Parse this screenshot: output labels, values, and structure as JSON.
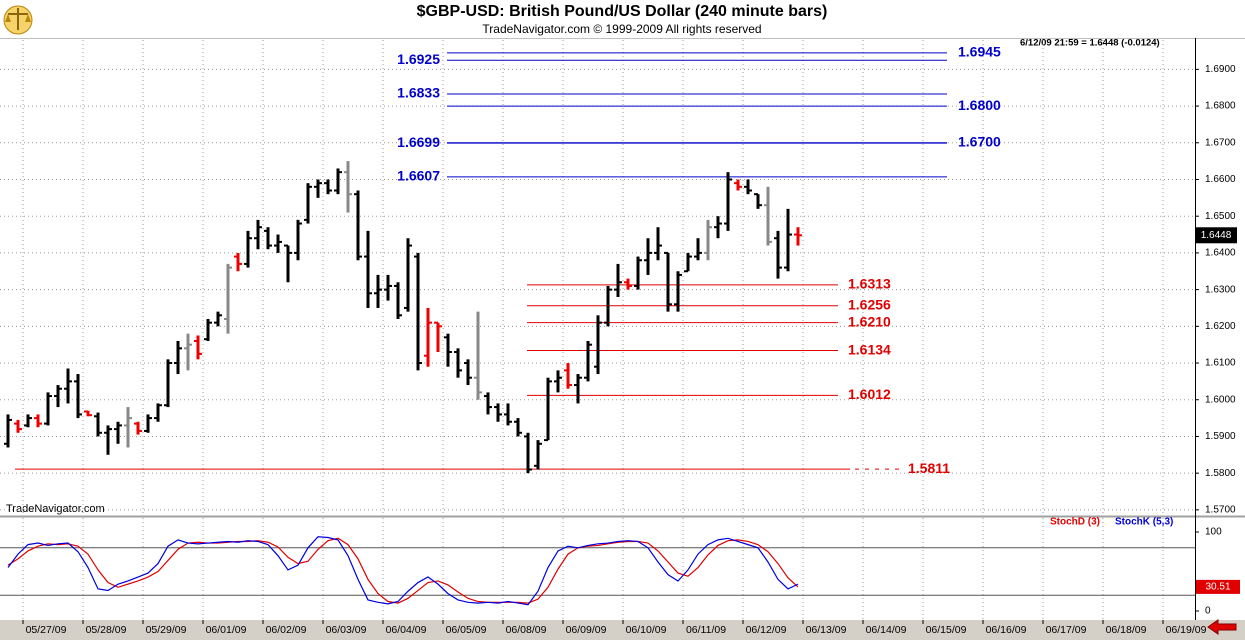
{
  "chart_data": [
    {
      "type": "ohlc",
      "title": "$GBP-USD:  British Pound/US Dollar  (240 minute bars)",
      "subtitle": "TradeNavigator.com © 1999-2009 All rights reserved",
      "annotation": "6/12/09 21:59 = 1.6448 (-0.0124)",
      "watermark": "TradeNavigator.com",
      "x": [
        0,
        1,
        2,
        3,
        4,
        5,
        6,
        7,
        8,
        9,
        10,
        11,
        12,
        13,
        14,
        15,
        16,
        17,
        18,
        19,
        20,
        21,
        22,
        23,
        24,
        25,
        26,
        27,
        28,
        29,
        30,
        31,
        32,
        33,
        34,
        35,
        36,
        37,
        38,
        39,
        40,
        41,
        42,
        43,
        44,
        45,
        46,
        47,
        48,
        49,
        50,
        51,
        52,
        53,
        54,
        55,
        56,
        57,
        58,
        59,
        60,
        61,
        62,
        63,
        64,
        65,
        66,
        67,
        68,
        69,
        70,
        71,
        72,
        73,
        74,
        75,
        76,
        77,
        78,
        79
      ],
      "open": [
        1.588,
        1.5935,
        1.593,
        1.595,
        1.5935,
        1.601,
        1.603,
        1.605,
        1.5968,
        1.5955,
        1.591,
        1.592,
        1.593,
        1.5935,
        1.5915,
        1.595,
        1.5985,
        1.61,
        1.614,
        1.616,
        1.6165,
        1.621,
        1.622,
        1.639,
        1.637,
        1.644,
        1.646,
        1.642,
        1.642,
        1.64,
        1.649,
        1.658,
        1.659,
        1.657,
        1.662,
        1.656,
        1.639,
        1.629,
        1.63,
        1.631,
        1.625,
        1.639,
        1.612,
        1.621,
        1.617,
        1.613,
        1.61,
        1.606,
        1.601,
        1.598,
        1.596,
        1.594,
        1.59,
        1.582,
        1.589,
        1.605,
        1.608,
        1.604,
        1.606,
        1.609,
        1.621,
        1.63,
        1.632,
        1.631,
        1.638,
        1.64,
        1.64,
        1.626,
        1.635,
        1.639,
        1.64,
        1.647,
        1.648,
        1.659,
        1.658,
        1.656,
        1.653,
        1.644,
        1.636,
        1.645
      ],
      "high": [
        1.596,
        1.5945,
        1.596,
        1.596,
        1.602,
        1.604,
        1.6085,
        1.607,
        1.597,
        1.5965,
        1.593,
        1.594,
        1.598,
        1.594,
        1.596,
        1.599,
        1.611,
        1.616,
        1.618,
        1.6175,
        1.622,
        1.624,
        1.637,
        1.64,
        1.646,
        1.649,
        1.647,
        1.645,
        1.642,
        1.649,
        1.659,
        1.66,
        1.66,
        1.663,
        1.665,
        1.657,
        1.646,
        1.634,
        1.634,
        1.632,
        1.644,
        1.64,
        1.625,
        1.621,
        1.618,
        1.614,
        1.611,
        1.624,
        1.602,
        1.599,
        1.599,
        1.595,
        1.591,
        1.589,
        1.606,
        1.608,
        1.61,
        1.607,
        1.616,
        1.623,
        1.631,
        1.637,
        1.633,
        1.639,
        1.644,
        1.647,
        1.64,
        1.635,
        1.64,
        1.644,
        1.649,
        1.65,
        1.662,
        1.66,
        1.66,
        1.656,
        1.658,
        1.646,
        1.652,
        1.647
      ],
      "low": [
        1.587,
        1.591,
        1.5925,
        1.5925,
        1.593,
        1.598,
        1.599,
        1.595,
        1.5955,
        1.59,
        1.585,
        1.588,
        1.587,
        1.5905,
        1.591,
        1.594,
        1.598,
        1.607,
        1.608,
        1.611,
        1.616,
        1.62,
        1.618,
        1.635,
        1.636,
        1.641,
        1.641,
        1.64,
        1.632,
        1.638,
        1.648,
        1.655,
        1.656,
        1.656,
        1.651,
        1.638,
        1.625,
        1.625,
        1.627,
        1.622,
        1.624,
        1.608,
        1.609,
        1.613,
        1.609,
        1.606,
        1.604,
        1.6,
        1.596,
        1.594,
        1.593,
        1.59,
        1.58,
        1.581,
        1.589,
        1.602,
        1.603,
        1.599,
        1.605,
        1.607,
        1.62,
        1.628,
        1.63,
        1.63,
        1.634,
        1.638,
        1.624,
        1.624,
        1.635,
        1.638,
        1.638,
        1.644,
        1.646,
        1.657,
        1.656,
        1.652,
        1.642,
        1.633,
        1.635,
        1.642
      ],
      "close": [
        1.5945,
        1.592,
        1.595,
        1.5935,
        1.601,
        1.603,
        1.605,
        1.596,
        1.5958,
        1.591,
        1.592,
        1.593,
        1.595,
        1.5915,
        1.595,
        1.5985,
        1.61,
        1.614,
        1.615,
        1.6125,
        1.621,
        1.623,
        1.636,
        1.637,
        1.644,
        1.647,
        1.642,
        1.643,
        1.64,
        1.648,
        1.658,
        1.659,
        1.657,
        1.662,
        1.656,
        1.639,
        1.629,
        1.63,
        1.631,
        1.623,
        1.642,
        1.61,
        1.621,
        1.62,
        1.613,
        1.608,
        1.606,
        1.602,
        1.598,
        1.596,
        1.594,
        1.591,
        1.581,
        1.588,
        1.605,
        1.606,
        1.604,
        1.606,
        1.615,
        1.621,
        1.63,
        1.632,
        1.631,
        1.638,
        1.64,
        1.642,
        1.626,
        1.634,
        1.639,
        1.64,
        1.647,
        1.648,
        1.66,
        1.658,
        1.657,
        1.653,
        1.643,
        1.636,
        1.645,
        1.6448
      ],
      "colors": [
        "#000",
        "#e00",
        "#000",
        "#e00",
        "#000",
        "#000",
        "#000",
        "#000",
        "#e00",
        "#000",
        "#000",
        "#000",
        "#888",
        "#e00",
        "#000",
        "#000",
        "#000",
        "#000",
        "#888",
        "#e00",
        "#000",
        "#000",
        "#888",
        "#e00",
        "#000",
        "#000",
        "#000",
        "#000",
        "#000",
        "#000",
        "#000",
        "#000",
        "#000",
        "#000",
        "#888",
        "#000",
        "#000",
        "#000",
        "#000",
        "#000",
        "#000",
        "#000",
        "#e00",
        "#e00",
        "#000",
        "#000",
        "#000",
        "#888",
        "#000",
        "#000",
        "#000",
        "#000",
        "#000",
        "#000",
        "#000",
        "#000",
        "#e00",
        "#000",
        "#000",
        "#000",
        "#000",
        "#000",
        "#e00",
        "#000",
        "#000",
        "#000",
        "#000",
        "#000",
        "#000",
        "#000",
        "#888",
        "#000",
        "#000",
        "#e00",
        "#000",
        "#000",
        "#888",
        "#000",
        "#000",
        "#e00"
      ],
      "xlim": [
        -0.8,
        118.7
      ],
      "ylim": [
        1.5686,
        1.698
      ],
      "yticks": [
        {
          "value": 1.57,
          "label": "1.5700"
        },
        {
          "value": 1.58,
          "label": "1.5800"
        },
        {
          "value": 1.59,
          "label": "1.5900"
        },
        {
          "value": 1.6,
          "label": "1.6000"
        },
        {
          "value": 1.61,
          "label": "1.6100"
        },
        {
          "value": 1.62,
          "label": "1.6200"
        },
        {
          "value": 1.63,
          "label": "1.6300"
        },
        {
          "value": 1.64,
          "label": "1.6400"
        },
        {
          "value": 1.65,
          "label": "1.6500"
        },
        {
          "value": 1.66,
          "label": "1.6600"
        },
        {
          "value": 1.67,
          "label": "1.6700"
        },
        {
          "value": 1.68,
          "label": "1.6800"
        },
        {
          "value": 1.69,
          "label": "1.6900"
        }
      ],
      "grid": true,
      "resistance_levels": {
        "color": "#0000cc",
        "levels": [
          {
            "value": 1.6945,
            "label": "1.6945"
          },
          {
            "value": 1.6925,
            "label": "1.6925"
          },
          {
            "value": 1.6833,
            "label": "1.6833"
          },
          {
            "value": 1.68,
            "label": "1.6800"
          },
          {
            "value": 1.67,
            "label": "1.6700"
          },
          {
            "value": 1.6699,
            "label": "1.6699"
          },
          {
            "value": 1.6607,
            "label": "1.6607"
          }
        ]
      },
      "support_levels": {
        "color": "#e00000",
        "levels": [
          {
            "value": 1.6313,
            "label": "1.6313"
          },
          {
            "value": 1.6256,
            "label": "1.6256"
          },
          {
            "value": 1.621,
            "label": "1.6210"
          },
          {
            "value": 1.6134,
            "label": "1.6134"
          },
          {
            "value": 1.6012,
            "label": "1.6012"
          },
          {
            "value": 1.5811,
            "label": "1.5811"
          }
        ]
      }
    },
    {
      "type": "line",
      "x": [
        0,
        1,
        2,
        3,
        4,
        5,
        6,
        7,
        8,
        9,
        10,
        11,
        12,
        13,
        14,
        15,
        16,
        17,
        18,
        19,
        20,
        21,
        22,
        23,
        24,
        25,
        26,
        27,
        28,
        29,
        30,
        31,
        32,
        33,
        34,
        35,
        36,
        37,
        38,
        39,
        40,
        41,
        42,
        43,
        44,
        45,
        46,
        47,
        48,
        49,
        50,
        51,
        52,
        53,
        54,
        55,
        56,
        57,
        58,
        59,
        60,
        61,
        62,
        63,
        64,
        65,
        66,
        67,
        68,
        69,
        70,
        71,
        72,
        73,
        74,
        75,
        76,
        77,
        78,
        79
      ],
      "series": [
        {
          "name": "StochD (3)",
          "color": "#e00000",
          "values": [
            58,
            66,
            76,
            82,
            85,
            84,
            85,
            82,
            72,
            52,
            36,
            30,
            34,
            38,
            43,
            50,
            64,
            78,
            86,
            87,
            86,
            86,
            87,
            88,
            88,
            89,
            87,
            81,
            68,
            60,
            63,
            78,
            89,
            92,
            84,
            66,
            40,
            22,
            12,
            10,
            16,
            26,
            36,
            38,
            33,
            24,
            16,
            12,
            11,
            11,
            11,
            11,
            10,
            15,
            30,
            53,
            72,
            80,
            82,
            83,
            85,
            87,
            88,
            88,
            86,
            76,
            62,
            48,
            44,
            55,
            71,
            83,
            89,
            90,
            88,
            84,
            75,
            60,
            42,
            30.51
          ]
        },
        {
          "name": "StochK (5,3)",
          "color": "#0000e0",
          "values": [
            55,
            72,
            84,
            86,
            83,
            85,
            86,
            75,
            55,
            28,
            26,
            34,
            38,
            43,
            48,
            60,
            82,
            90,
            86,
            85,
            86,
            87,
            88,
            87,
            89,
            88,
            84,
            70,
            52,
            58,
            80,
            94,
            93,
            90,
            70,
            40,
            14,
            11,
            9,
            12,
            25,
            36,
            43,
            34,
            22,
            14,
            11,
            10,
            11,
            10,
            12,
            10,
            8,
            25,
            55,
            76,
            82,
            80,
            83,
            85,
            86,
            88,
            89,
            88,
            80,
            62,
            46,
            38,
            52,
            72,
            84,
            90,
            92,
            88,
            84,
            80,
            62,
            40,
            28,
            34
          ]
        }
      ],
      "xlim": [
        -0.8,
        118.7
      ],
      "ylim": [
        -11.4,
        117.7
      ],
      "yticks": [
        0,
        100
      ],
      "levels": [
        20,
        80
      ],
      "xticks": [
        {
          "value": 1.5,
          "label": "05/27/09"
        },
        {
          "value": 7.5,
          "label": "05/28/09"
        },
        {
          "value": 13.5,
          "label": "05/29/09"
        },
        {
          "value": 19.5,
          "label": "06/01/09"
        },
        {
          "value": 25.5,
          "label": "06/02/09"
        },
        {
          "value": 31.5,
          "label": "06/03/09"
        },
        {
          "value": 37.5,
          "label": "06/04/09"
        },
        {
          "value": 43.5,
          "label": "06/05/09"
        },
        {
          "value": 49.5,
          "label": "06/08/09"
        },
        {
          "value": 55.5,
          "label": "06/09/09"
        },
        {
          "value": 61.5,
          "label": "06/10/09"
        },
        {
          "value": 67.5,
          "label": "06/11/09"
        },
        {
          "value": 73.5,
          "label": "06/12/09"
        },
        {
          "value": 79.5,
          "label": "06/13/09"
        },
        {
          "value": 85.5,
          "label": "06/14/09"
        },
        {
          "value": 91.5,
          "label": "06/15/09"
        },
        {
          "value": 97.5,
          "label": "06/16/09"
        },
        {
          "value": 103.5,
          "label": "06/17/09"
        },
        {
          "value": 109.5,
          "label": "06/18/09"
        },
        {
          "value": 115.5,
          "label": "06/19/09"
        }
      ]
    }
  ]
}
